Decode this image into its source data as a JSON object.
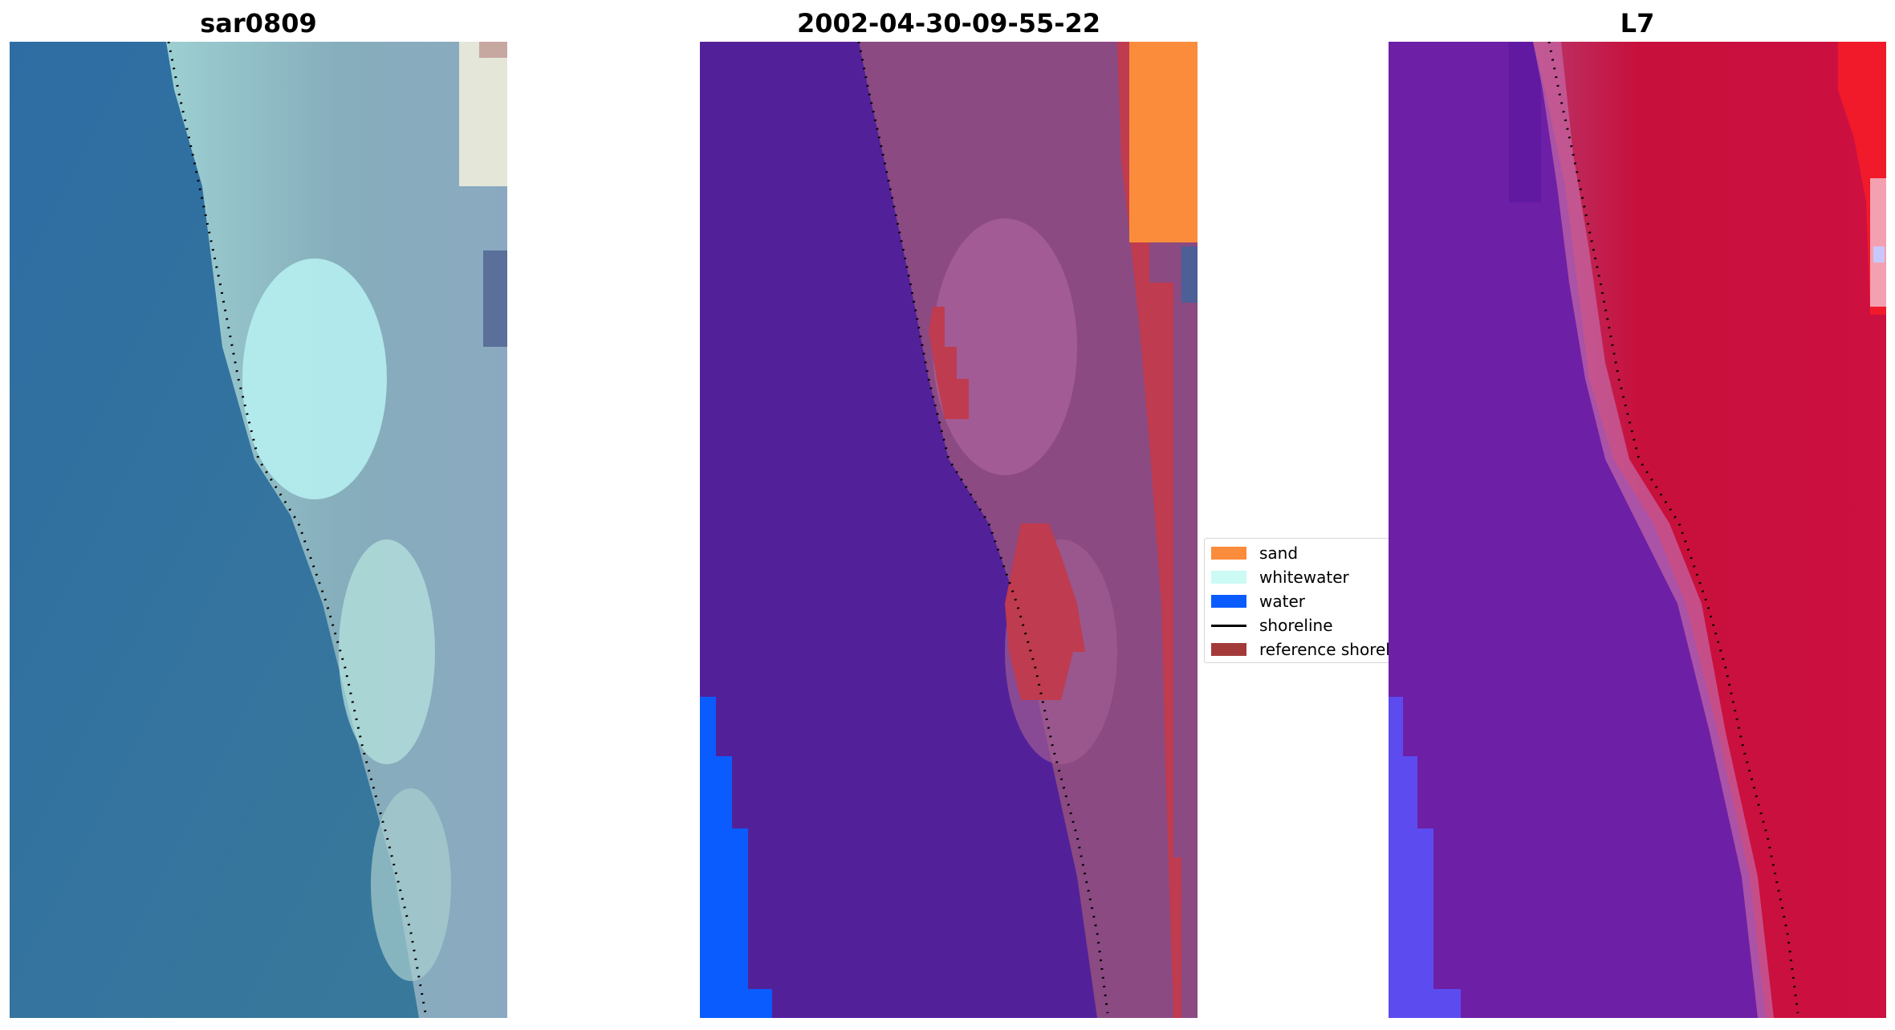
{
  "panels": [
    {
      "title": "sar0809"
    },
    {
      "title": "2002-04-30-09-55-22"
    },
    {
      "title": "L7"
    }
  ],
  "legend": {
    "items": [
      {
        "label": "sand",
        "color": "#fb8c3c"
      },
      {
        "label": "whitewater",
        "color": "#ccfaf4"
      },
      {
        "label": "water",
        "color": "#0a5cff"
      },
      {
        "label": "shoreline",
        "color": "#000000"
      },
      {
        "label": "reference shoreline",
        "color": "#a33a3a"
      }
    ]
  },
  "colors": {
    "background": "#ffffff",
    "rgb_water": "#2f6ea2",
    "rgb_surf": "#a9dde0",
    "rgb_land": "#8ab0b8",
    "class_water_dark": "#52219a",
    "class_land": "#8b4a82",
    "class_land_light": "#a75f98",
    "class_ref_shoreline": "#bf3b4f",
    "class_sand": "#fb8c3c",
    "class_water": "#0a5cff",
    "l7_water": "#6d1fa6",
    "l7_land": "#c8103c",
    "l7_blue_edge": "#5c4cf0"
  }
}
